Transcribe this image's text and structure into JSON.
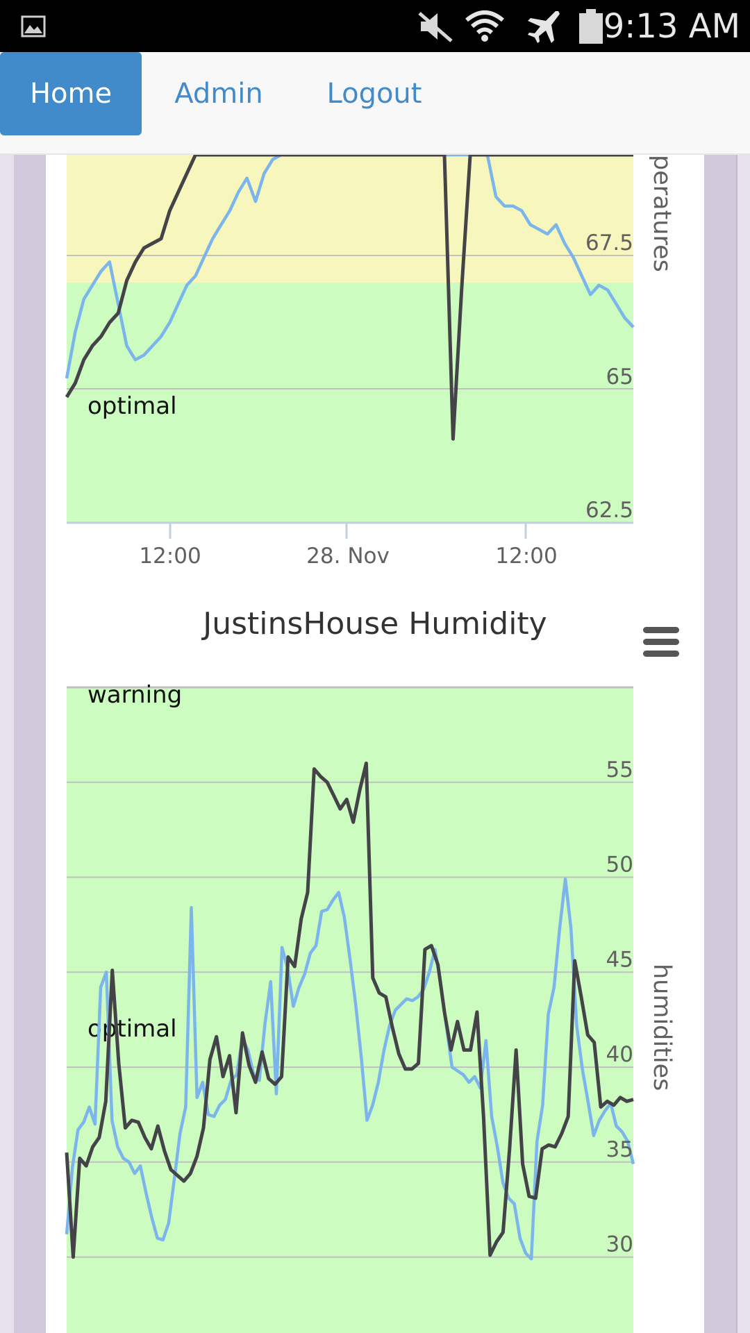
{
  "status_bar": {
    "time": "9:13 AM",
    "icons": [
      "gallery-icon",
      "mute-icon",
      "wifi-icon",
      "airplane-icon",
      "battery-icon"
    ]
  },
  "nav": {
    "items": [
      {
        "label": "Home",
        "active": true
      },
      {
        "label": "Admin",
        "active": false
      },
      {
        "label": "Logout",
        "active": false
      }
    ]
  },
  "colors": {
    "nav_active": "#428bca",
    "warning_band": "#f7f7bd",
    "optimal_band": "#ccfcc0",
    "series_dark": "#434348",
    "series_light": "#7cb5ec"
  },
  "chart_data": [
    {
      "type": "line",
      "title": "",
      "ylabel": "Temperatures",
      "ylabel_visible_fragment": "peratures",
      "x_ticks": [
        "12:00",
        "28. Nov",
        "12:00"
      ],
      "y_ticks": [
        "62.5",
        "65",
        "67.5"
      ],
      "ylim": [
        62.5,
        70.4
      ],
      "bands": [
        {
          "label": "",
          "from": 67.0,
          "to": 70.4,
          "color": "#f7f7bd"
        },
        {
          "label": "optimal",
          "from": 62.5,
          "to": 67.0,
          "color": "#ccfcc0"
        }
      ],
      "series": [
        {
          "color": "#434348",
          "values": [
            65.2,
            65.5,
            66.0,
            66.3,
            66.5,
            66.8,
            67.0,
            67.7,
            68.1,
            68.4,
            68.5,
            68.6,
            69.2,
            69.6,
            70.0,
            70.4,
            70.4,
            70.4,
            70.4,
            70.4,
            70.4,
            70.4,
            70.4,
            70.4,
            70.4,
            70.4,
            70.4,
            70.4,
            70.4,
            70.4,
            70.4,
            70.4,
            70.4,
            70.4,
            70.4,
            70.4,
            70.4,
            70.4,
            70.4,
            70.4,
            70.4,
            70.4,
            70.4,
            70.4,
            70.4,
            64.3,
            67.5,
            70.4,
            70.4,
            70.4,
            70.4,
            70.4,
            70.4,
            70.4,
            70.4,
            70.4,
            70.4,
            70.4,
            70.4,
            70.4,
            70.4,
            70.4,
            70.4,
            70.4,
            70.4,
            70.4,
            70.4
          ]
        },
        {
          "color": "#7cb5ec",
          "values": [
            65.6,
            66.6,
            67.3,
            67.6,
            67.9,
            68.1,
            67.2,
            66.3,
            66.0,
            66.1,
            66.3,
            66.5,
            66.8,
            67.2,
            67.6,
            67.8,
            68.2,
            68.6,
            68.9,
            69.2,
            69.6,
            69.9,
            69.4,
            70.0,
            70.3,
            70.4,
            70.4,
            70.4,
            70.4,
            70.4,
            70.4,
            70.4,
            70.4,
            70.4,
            70.4,
            70.4,
            70.4,
            70.4,
            70.4,
            70.4,
            70.4,
            70.4,
            70.4,
            70.4,
            70.4,
            70.4,
            70.4,
            70.4,
            70.4,
            70.4,
            69.5,
            69.3,
            69.3,
            69.2,
            68.9,
            68.8,
            68.7,
            68.9,
            68.5,
            68.2,
            67.8,
            67.4,
            67.6,
            67.5,
            67.2,
            66.9,
            66.7
          ]
        }
      ]
    },
    {
      "type": "line",
      "title": "JustinsHouse Humidity",
      "ylabel": "humidities",
      "x_ticks": [],
      "y_ticks": [
        "30",
        "35",
        "40",
        "45",
        "50",
        "55"
      ],
      "ylim": [
        26,
        60
      ],
      "bands": [
        {
          "label": "warning",
          "from": 59.9,
          "to": 60,
          "color": "#ccfcc0"
        },
        {
          "label": "optimal",
          "from": 26,
          "to": 59.9,
          "color": "#ccfcc0"
        }
      ],
      "series": [
        {
          "color": "#434348",
          "values": [
            35.5,
            30.0,
            35.2,
            34.8,
            35.8,
            36.3,
            38.2,
            45.1,
            40.2,
            36.8,
            37.2,
            37.1,
            36.3,
            35.7,
            36.9,
            35.6,
            34.6,
            34.3,
            34.0,
            34.4,
            35.3,
            36.8,
            40.4,
            41.6,
            39.5,
            40.6,
            37.6,
            41.8,
            40.1,
            39.2,
            40.8,
            39.4,
            39.1,
            39.5,
            45.8,
            45.3,
            47.8,
            49.2,
            55.7,
            55.3,
            55.0,
            54.3,
            53.6,
            54.1,
            52.9,
            54.6,
            56.0,
            44.7,
            43.9,
            43.7,
            42.1,
            40.7,
            39.9,
            39.9,
            40.2,
            46.2,
            46.4,
            45.4,
            42.9,
            40.9,
            42.4,
            40.9,
            40.9,
            42.9,
            37.4,
            30.1,
            30.8,
            31.3,
            35.7,
            40.9,
            34.9,
            33.2,
            33.1,
            35.7,
            35.9,
            35.8,
            36.5,
            37.4,
            45.6,
            43.7,
            41.7,
            41.3,
            37.9,
            38.2,
            38.0,
            38.4,
            38.2,
            38.3
          ]
        },
        {
          "color": "#7cb5ec",
          "values": [
            31.2,
            34.7,
            36.7,
            37.1,
            37.9,
            37.0,
            44.2,
            45.0,
            37.2,
            35.8,
            35.2,
            35.0,
            34.4,
            34.8,
            33.4,
            32.1,
            31.0,
            30.9,
            31.8,
            34.1,
            36.5,
            37.9,
            48.4,
            38.4,
            39.2,
            37.5,
            37.4,
            38.0,
            38.3,
            39.3,
            39.6,
            41.5,
            40.9,
            39.6,
            39.3,
            42.3,
            44.5,
            38.6,
            46.3,
            45.2,
            43.2,
            44.2,
            44.9,
            46.0,
            46.4,
            48.2,
            48.3,
            48.8,
            49.2,
            47.9,
            45.7,
            43.3,
            40.5,
            37.2,
            38.0,
            39.2,
            40.9,
            42.2,
            43.0,
            43.3,
            43.6,
            43.5,
            43.7,
            44.1,
            45.0,
            46.2,
            44.4,
            42.2,
            40.0,
            39.8,
            39.6,
            39.2,
            39.5,
            38.9,
            41.4,
            37.4,
            35.8,
            33.9,
            33.1,
            32.8,
            31.0,
            30.2,
            29.9,
            36.1,
            38.0,
            42.8,
            44.2,
            47.3,
            49.9,
            47.3,
            42.2,
            39.9,
            38.2,
            36.4,
            37.2,
            37.7,
            38.1,
            36.9,
            36.6,
            36.1,
            34.9
          ]
        }
      ]
    }
  ]
}
